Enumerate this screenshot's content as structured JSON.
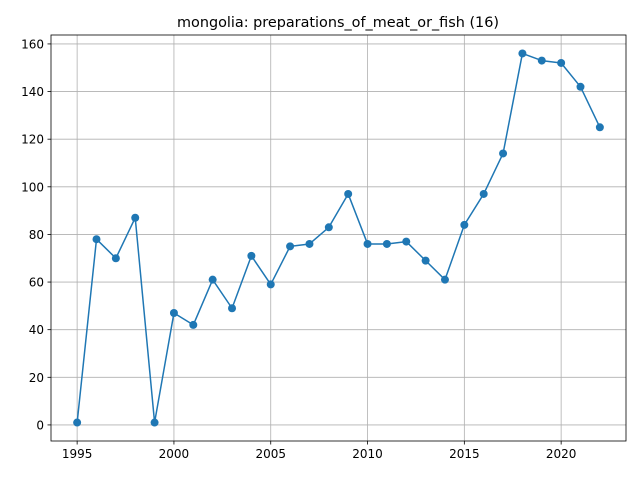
{
  "chart_data": {
    "type": "line",
    "title": "mongolia: preparations_of_meat_or_fish (16)",
    "xlabel": "",
    "ylabel": "",
    "x": [
      1995,
      1996,
      1997,
      1998,
      1999,
      2000,
      2001,
      2002,
      2003,
      2004,
      2005,
      2006,
      2007,
      2008,
      2009,
      2010,
      2011,
      2012,
      2013,
      2014,
      2015,
      2016,
      2017,
      2018,
      2019,
      2020,
      2021,
      2022
    ],
    "series": [
      {
        "values": [
          1,
          78,
          70,
          87,
          1,
          47,
          42,
          61,
          49,
          71,
          59,
          75,
          76,
          83,
          97,
          76,
          76,
          77,
          69,
          61,
          84,
          97,
          114,
          156,
          153,
          152,
          142,
          125
        ],
        "color": "#1f77b4"
      }
    ],
    "xlim": [
      1993.65,
      2023.35
    ],
    "ylim": [
      -6.75,
      163.75
    ],
    "xticks": [
      1995,
      2000,
      2005,
      2010,
      2015,
      2020
    ],
    "yticks": [
      0,
      20,
      40,
      60,
      80,
      100,
      120,
      140,
      160
    ],
    "grid": true,
    "legend": "none"
  }
}
